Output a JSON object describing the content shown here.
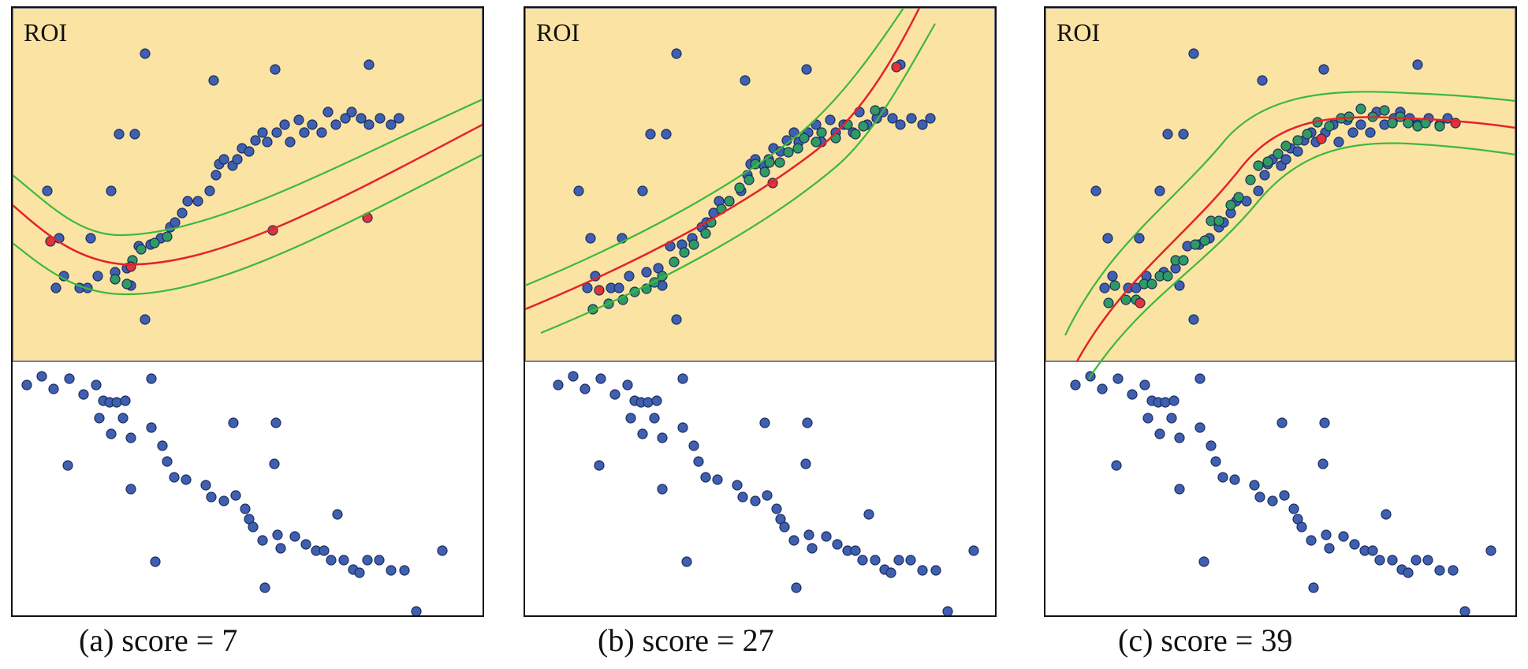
{
  "roi_label": "ROI",
  "colors": {
    "roi_fill": "#fbe3a3",
    "point_blue": "#3f5fb0",
    "point_green": "#2f9a63",
    "point_red": "#e0333a",
    "line_red": "#e3242b",
    "line_green": "#3cb93c"
  },
  "panels": [
    {
      "caption": "(a) score = 7"
    },
    {
      "caption": "(b) score = 27"
    },
    {
      "caption": "(c) score = 39"
    }
  ]
}
